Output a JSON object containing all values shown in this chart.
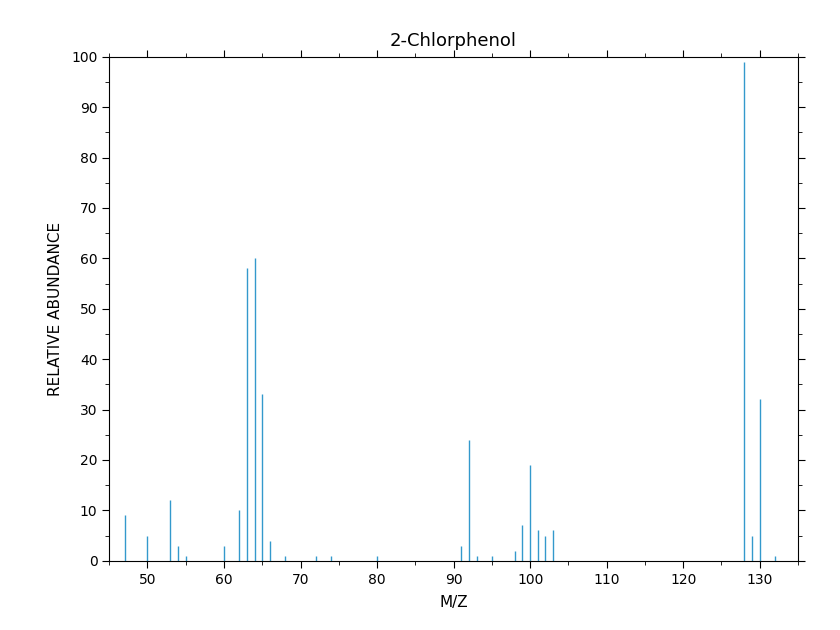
{
  "title": "2-Chlorphenol",
  "xlabel": "M/Z",
  "ylabel": "RELATIVE ABUNDANCE",
  "xlim": [
    45,
    135
  ],
  "ylim": [
    0,
    100
  ],
  "xticks": [
    50,
    60,
    70,
    80,
    90,
    100,
    110,
    120,
    130
  ],
  "yticks": [
    0,
    10,
    20,
    30,
    40,
    50,
    60,
    70,
    80,
    90,
    100
  ],
  "stem_color": "#3399CC",
  "background_color": "#ffffff",
  "mz_values": [
    47,
    50,
    51,
    53,
    54,
    55,
    60,
    62,
    63,
    64,
    65,
    66,
    68,
    72,
    74,
    80,
    91,
    92,
    93,
    95,
    98,
    99,
    100,
    101,
    102,
    103,
    128,
    129,
    130,
    132
  ],
  "abundance": [
    9,
    5,
    0,
    12,
    3,
    1,
    3,
    10,
    58,
    60,
    33,
    4,
    1,
    1,
    1,
    1,
    3,
    24,
    1,
    1,
    2,
    7,
    19,
    6,
    5,
    6,
    99,
    5,
    32,
    1
  ]
}
